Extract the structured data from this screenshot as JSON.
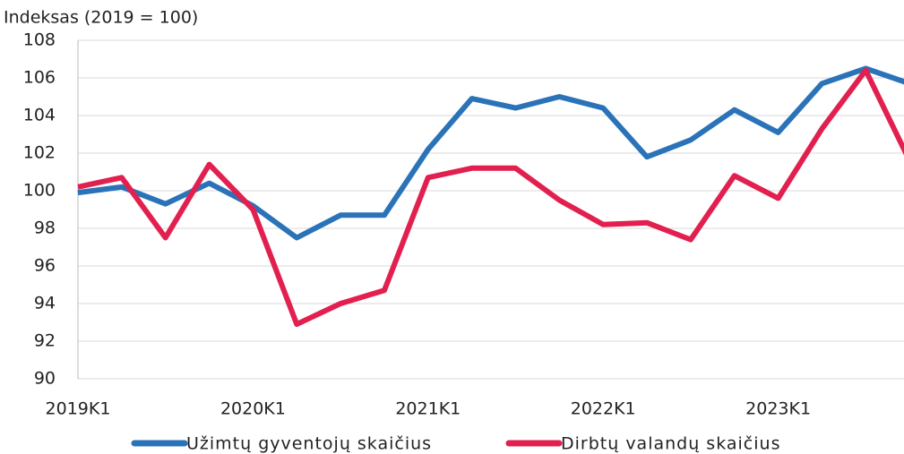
{
  "chart_data": {
    "type": "line",
    "y_axis_label": "Indeksas (2019 = 100)",
    "categories": [
      "2019K1",
      null,
      null,
      null,
      "2020K1",
      null,
      null,
      null,
      "2021K1",
      null,
      null,
      null,
      "2022K1",
      null,
      null,
      null,
      "2023K1",
      null,
      null,
      null
    ],
    "series": [
      {
        "name": "Užimtų gyventojų skaičius",
        "color": "#2a73b8",
        "values": [
          99.9,
          100.2,
          99.3,
          100.4,
          99.2,
          97.5,
          98.7,
          98.7,
          102.2,
          104.9,
          104.4,
          105.0,
          104.4,
          101.8,
          102.7,
          104.3,
          103.1,
          105.7,
          106.5,
          105.7
        ]
      },
      {
        "name": "Dirbtų valandų skaičius",
        "color": "#e2204f",
        "values": [
          100.2,
          100.7,
          97.5,
          101.4,
          99.0,
          92.9,
          94.0,
          94.7,
          100.7,
          101.2,
          101.2,
          99.5,
          98.2,
          98.3,
          97.4,
          100.8,
          99.6,
          103.3,
          106.4,
          101.6
        ]
      }
    ],
    "ylim": [
      90,
      108
    ],
    "yticks": [
      90,
      92,
      94,
      96,
      98,
      100,
      102,
      104,
      106,
      108
    ],
    "grid": true,
    "legend": "bottom"
  }
}
